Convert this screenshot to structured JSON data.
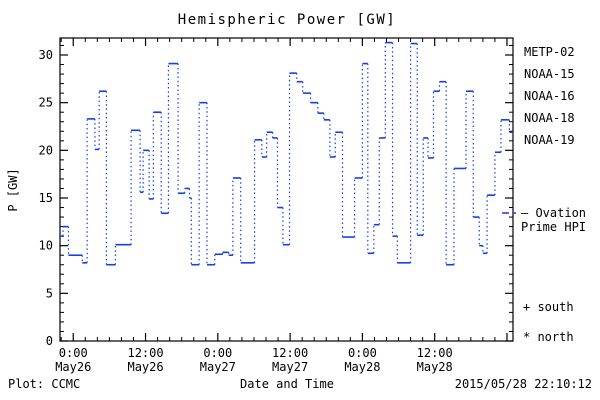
{
  "title": "Hemispheric Power [GW]",
  "footer": {
    "left": "Plot: CCMC",
    "xlabel": "Date and Time",
    "timestamp": "2015/05/28 22:10:12"
  },
  "legend": {
    "satellites": [
      {
        "label": "METP-02",
        "color": "#000000"
      },
      {
        "label": "NOAA-15",
        "color": "#2233dd"
      },
      {
        "label": "NOAA-16",
        "color": "#33bbee"
      },
      {
        "label": "NOAA-18",
        "color": "#55e877"
      },
      {
        "label": "NOAA-19",
        "color": "#ffa820"
      }
    ],
    "ovation": {
      "line1": "— Ovation",
      "line2": "Prime HPI",
      "color": "#2233dd"
    },
    "south": "+ south",
    "north": "* north"
  },
  "chart_data": {
    "type": "line",
    "subtype": "step-staircase, solid horizontal levels with dotted vertical connectors",
    "title": "Hemispheric Power [GW]",
    "xlabel": "Date and Time",
    "ylabel": "P [GW]",
    "x_unit": "hours since 2015-05-26 00:00",
    "xlim": [
      -2.2,
      73.0
    ],
    "ylim": [
      0,
      31.8
    ],
    "grid": false,
    "axis_color": "#000000",
    "yticks": {
      "major": [
        0,
        5,
        10,
        15,
        20,
        25,
        30
      ],
      "minor_step": 1,
      "minor_max": 31
    },
    "xticks": {
      "minor_step": 2,
      "major": [
        {
          "t": 0,
          "time": "0:00",
          "date": "May26"
        },
        {
          "t": 12,
          "time": "12:00",
          "date": "May26"
        },
        {
          "t": 24,
          "time": "0:00",
          "date": "May27"
        },
        {
          "t": 36,
          "time": "12:00",
          "date": "May27"
        },
        {
          "t": 48,
          "time": "0:00",
          "date": "May28"
        },
        {
          "t": 60,
          "time": "12:00",
          "date": "May28"
        },
        {
          "t": 72,
          "time": "",
          "date": ""
        }
      ]
    },
    "series": [
      {
        "name": "Ovation Prime HPI (NOAA-15)",
        "color": "#1540e8",
        "t_end": 73.0,
        "points": [
          {
            "t": -2.2,
            "v": 11.0
          },
          {
            "t": -1.7,
            "v": 12.0
          },
          {
            "t": -0.8,
            "v": 9.0
          },
          {
            "t": 1.5,
            "v": 8.2
          },
          {
            "t": 2.3,
            "v": 23.3
          },
          {
            "t": 3.6,
            "v": 20.1
          },
          {
            "t": 4.3,
            "v": 26.2
          },
          {
            "t": 5.5,
            "v": 8.0
          },
          {
            "t": 7.0,
            "v": 10.1
          },
          {
            "t": 9.6,
            "v": 22.1
          },
          {
            "t": 11.1,
            "v": 15.6
          },
          {
            "t": 11.6,
            "v": 20.0
          },
          {
            "t": 12.6,
            "v": 14.9
          },
          {
            "t": 13.3,
            "v": 24.0
          },
          {
            "t": 14.6,
            "v": 13.4
          },
          {
            "t": 15.8,
            "v": 29.1
          },
          {
            "t": 17.4,
            "v": 15.5
          },
          {
            "t": 18.5,
            "v": 16.0
          },
          {
            "t": 19.3,
            "v": 15.0
          },
          {
            "t": 19.6,
            "v": 8.0
          },
          {
            "t": 20.9,
            "v": 25.0
          },
          {
            "t": 22.2,
            "v": 8.0
          },
          {
            "t": 23.5,
            "v": 9.1
          },
          {
            "t": 24.8,
            "v": 9.3
          },
          {
            "t": 25.8,
            "v": 9.0
          },
          {
            "t": 26.5,
            "v": 17.1
          },
          {
            "t": 27.8,
            "v": 8.2
          },
          {
            "t": 30.1,
            "v": 21.1
          },
          {
            "t": 31.3,
            "v": 19.3
          },
          {
            "t": 32.1,
            "v": 21.9
          },
          {
            "t": 33.1,
            "v": 21.3
          },
          {
            "t": 33.9,
            "v": 14.0
          },
          {
            "t": 34.8,
            "v": 10.1
          },
          {
            "t": 35.9,
            "v": 28.1
          },
          {
            "t": 37.1,
            "v": 27.2
          },
          {
            "t": 38.1,
            "v": 26.0
          },
          {
            "t": 39.4,
            "v": 25.0
          },
          {
            "t": 40.6,
            "v": 23.9
          },
          {
            "t": 41.6,
            "v": 23.2
          },
          {
            "t": 42.6,
            "v": 19.3
          },
          {
            "t": 43.5,
            "v": 21.9
          },
          {
            "t": 44.7,
            "v": 10.9
          },
          {
            "t": 46.7,
            "v": 17.1
          },
          {
            "t": 48.0,
            "v": 29.1
          },
          {
            "t": 48.9,
            "v": 9.2
          },
          {
            "t": 49.9,
            "v": 12.2
          },
          {
            "t": 50.8,
            "v": 21.3
          },
          {
            "t": 51.8,
            "v": 31.3
          },
          {
            "t": 53.0,
            "v": 11.0
          },
          {
            "t": 53.8,
            "v": 8.2
          },
          {
            "t": 56.0,
            "v": 31.2
          },
          {
            "t": 57.1,
            "v": 11.1
          },
          {
            "t": 58.1,
            "v": 21.3
          },
          {
            "t": 58.9,
            "v": 19.2
          },
          {
            "t": 59.8,
            "v": 26.2
          },
          {
            "t": 60.8,
            "v": 27.2
          },
          {
            "t": 61.9,
            "v": 8.0
          },
          {
            "t": 63.2,
            "v": 18.1
          },
          {
            "t": 65.2,
            "v": 26.2
          },
          {
            "t": 66.4,
            "v": 13.0
          },
          {
            "t": 67.4,
            "v": 10.0
          },
          {
            "t": 68.0,
            "v": 9.2
          },
          {
            "t": 68.7,
            "v": 15.3
          },
          {
            "t": 70.0,
            "v": 19.8
          },
          {
            "t": 71.0,
            "v": 23.2
          },
          {
            "t": 72.4,
            "v": 21.9
          }
        ]
      }
    ],
    "legend_entries": [
      "METP-02",
      "NOAA-15",
      "NOAA-16",
      "NOAA-18",
      "NOAA-19"
    ],
    "annotations": [
      "— Ovation Prime HPI",
      "+ south",
      "* north"
    ]
  }
}
